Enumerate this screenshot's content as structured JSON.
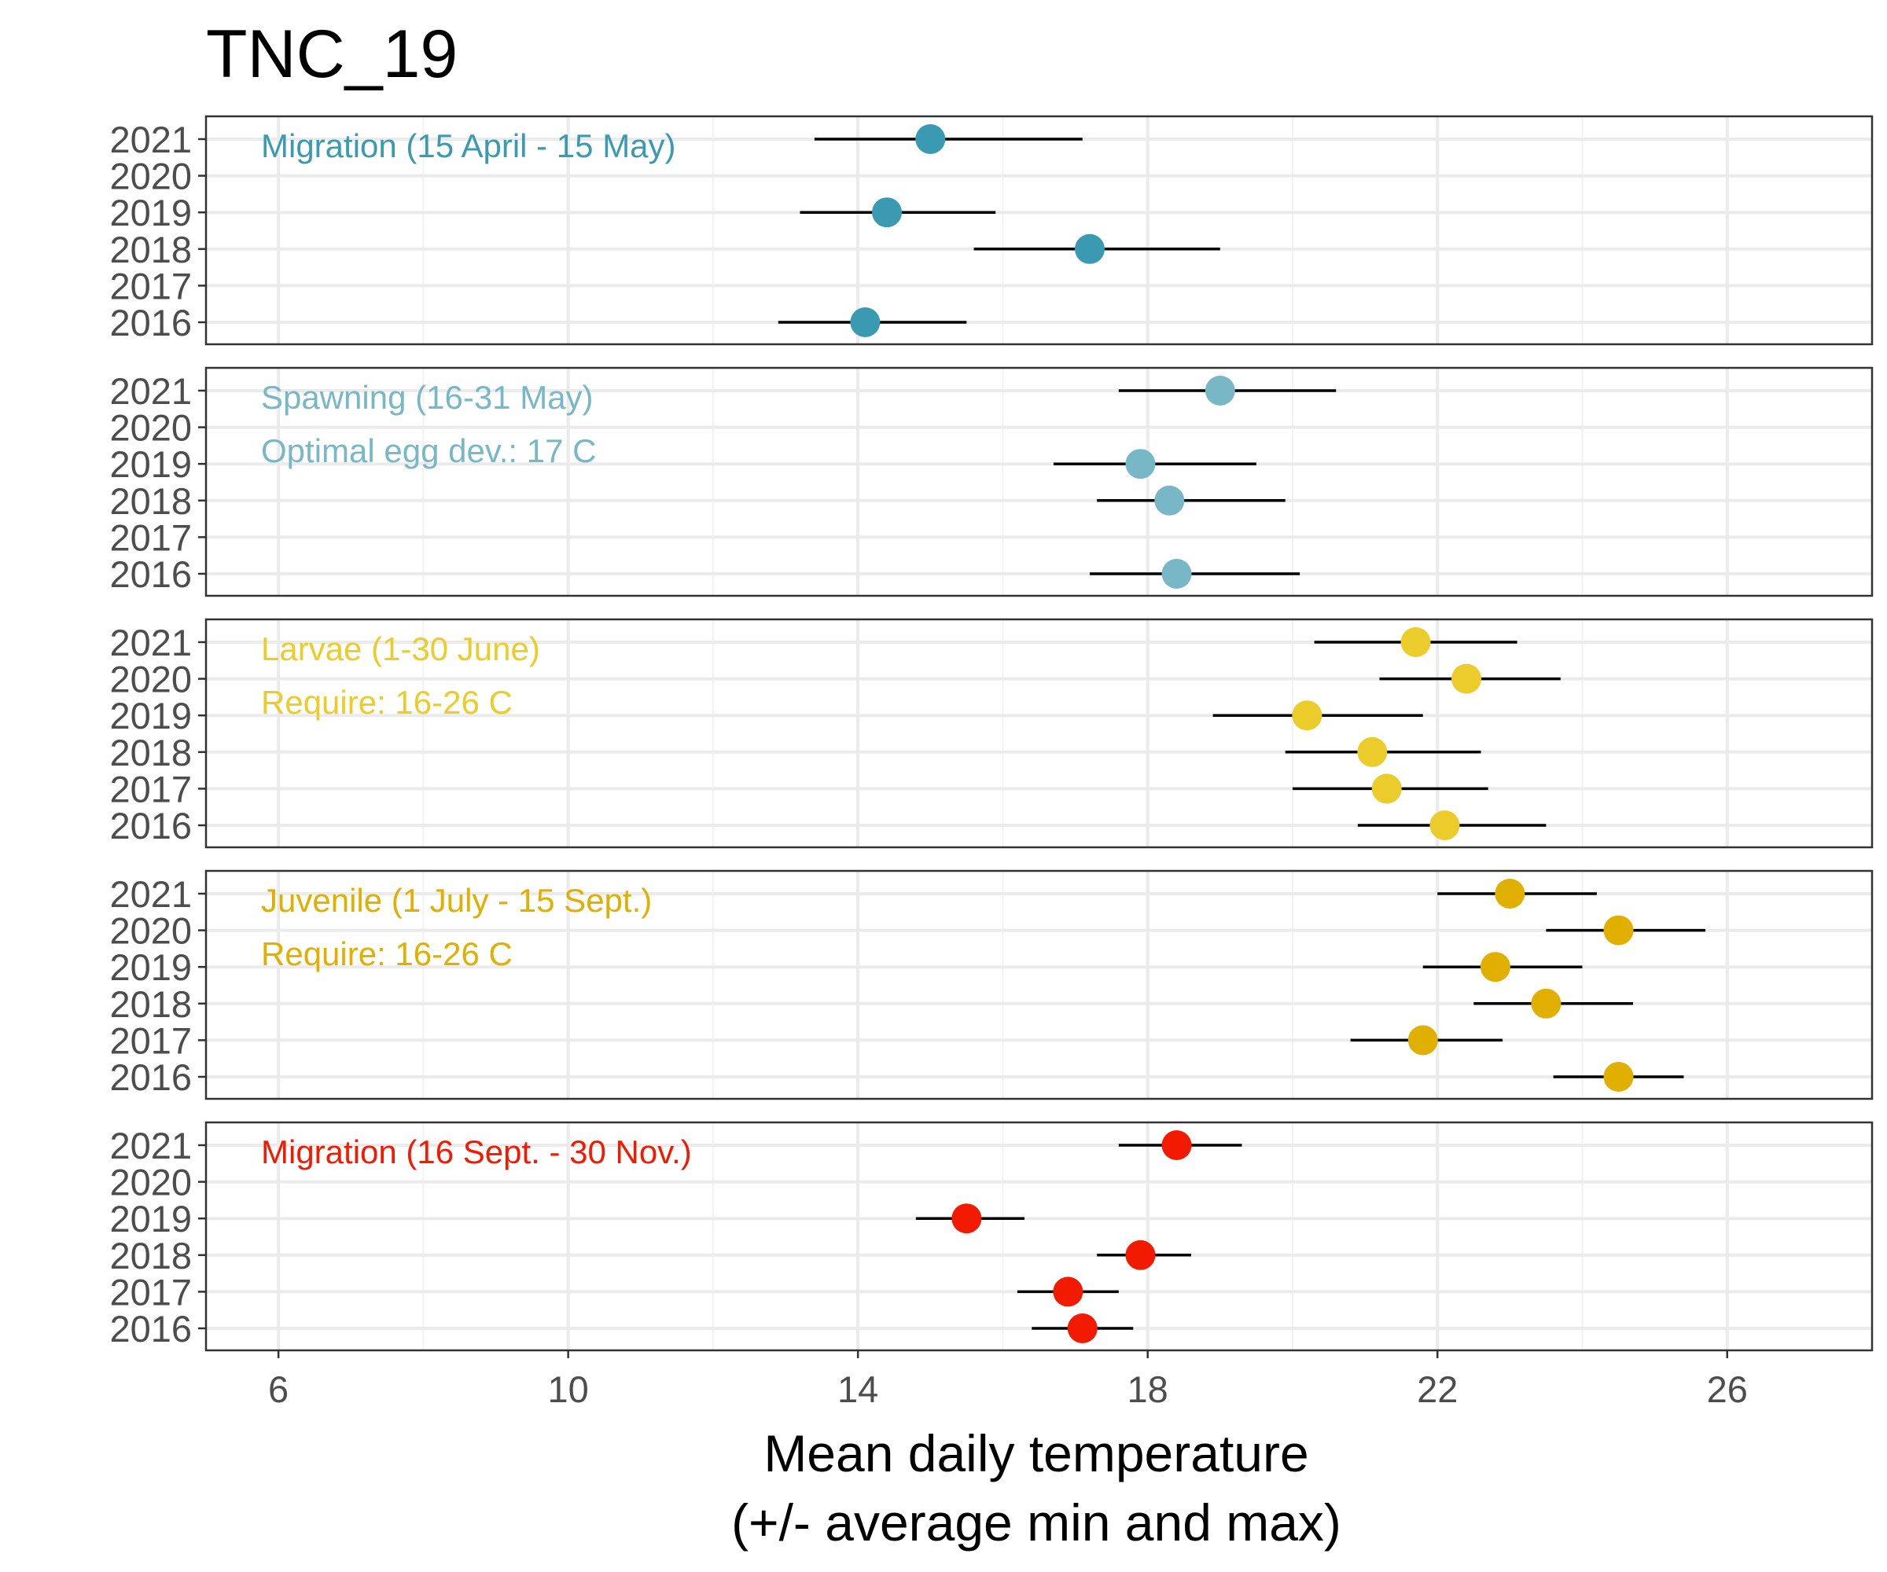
{
  "chart_data": {
    "type": "dot-range",
    "title": "TNC_19",
    "xlabel_lines": [
      "Mean daily temperature",
      "(+/- average min and max)"
    ],
    "xlim": [
      5,
      28
    ],
    "x_ticks": [
      6,
      10,
      14,
      18,
      22,
      26
    ],
    "x_minor_ticks": [
      8,
      12,
      16,
      20,
      24
    ],
    "y_categories": [
      "2016",
      "2017",
      "2018",
      "2019",
      "2020",
      "2021"
    ],
    "grid": true,
    "panels": [
      {
        "name": "Migration (15 April - 15 May)",
        "color": "#3a9ab2",
        "annotations": [
          "Migration (15 April - 15 May)"
        ],
        "points": [
          {
            "year": "2021",
            "mean": 15.0,
            "min": 13.4,
            "max": 17.1
          },
          {
            "year": "2019",
            "mean": 14.4,
            "min": 13.2,
            "max": 15.9
          },
          {
            "year": "2018",
            "mean": 17.2,
            "min": 15.6,
            "max": 19.0
          },
          {
            "year": "2016",
            "mean": 14.1,
            "min": 12.9,
            "max": 15.5
          }
        ]
      },
      {
        "name": "Spawning (16-31 May)",
        "color": "#78b7c5",
        "annotations": [
          "Spawning (16-31 May)",
          "Optimal egg dev.: 17 C"
        ],
        "points": [
          {
            "year": "2021",
            "mean": 19.0,
            "min": 17.6,
            "max": 20.6
          },
          {
            "year": "2019",
            "mean": 17.9,
            "min": 16.7,
            "max": 19.5
          },
          {
            "year": "2018",
            "mean": 18.3,
            "min": 17.3,
            "max": 19.9
          },
          {
            "year": "2016",
            "mean": 18.4,
            "min": 17.2,
            "max": 20.1
          }
        ]
      },
      {
        "name": "Larvae (1-30 June)",
        "color": "#ebcc2a",
        "annotations": [
          "Larvae (1-30 June)",
          "Require: 16-26 C"
        ],
        "points": [
          {
            "year": "2021",
            "mean": 21.7,
            "min": 20.3,
            "max": 23.1
          },
          {
            "year": "2020",
            "mean": 22.4,
            "min": 21.2,
            "max": 23.7
          },
          {
            "year": "2019",
            "mean": 20.2,
            "min": 18.9,
            "max": 21.8
          },
          {
            "year": "2018",
            "mean": 21.1,
            "min": 19.9,
            "max": 22.6
          },
          {
            "year": "2017",
            "mean": 21.3,
            "min": 20.0,
            "max": 22.7
          },
          {
            "year": "2016",
            "mean": 22.1,
            "min": 20.9,
            "max": 23.5
          }
        ]
      },
      {
        "name": "Juvenile (1 July - 15 Sept.)",
        "color": "#e1af00",
        "annotations": [
          "Juvenile (1 July - 15 Sept.)",
          "Require: 16-26 C"
        ],
        "points": [
          {
            "year": "2021",
            "mean": 23.0,
            "min": 22.0,
            "max": 24.2
          },
          {
            "year": "2020",
            "mean": 24.5,
            "min": 23.5,
            "max": 25.7
          },
          {
            "year": "2019",
            "mean": 22.8,
            "min": 21.8,
            "max": 24.0
          },
          {
            "year": "2018",
            "mean": 23.5,
            "min": 22.5,
            "max": 24.7
          },
          {
            "year": "2017",
            "mean": 21.8,
            "min": 20.8,
            "max": 22.9
          },
          {
            "year": "2016",
            "mean": 24.5,
            "min": 23.6,
            "max": 25.4
          }
        ]
      },
      {
        "name": "Migration (16 Sept. - 30 Nov.)",
        "color": "#f21a00",
        "annotations": [
          "Migration (16 Sept. - 30 Nov.)"
        ],
        "points": [
          {
            "year": "2021",
            "mean": 18.4,
            "min": 17.6,
            "max": 19.3
          },
          {
            "year": "2019",
            "mean": 15.5,
            "min": 14.8,
            "max": 16.3
          },
          {
            "year": "2018",
            "mean": 17.9,
            "min": 17.3,
            "max": 18.6
          },
          {
            "year": "2017",
            "mean": 16.9,
            "min": 16.2,
            "max": 17.6
          },
          {
            "year": "2016",
            "mean": 17.1,
            "min": 16.4,
            "max": 17.8
          }
        ]
      }
    ]
  }
}
